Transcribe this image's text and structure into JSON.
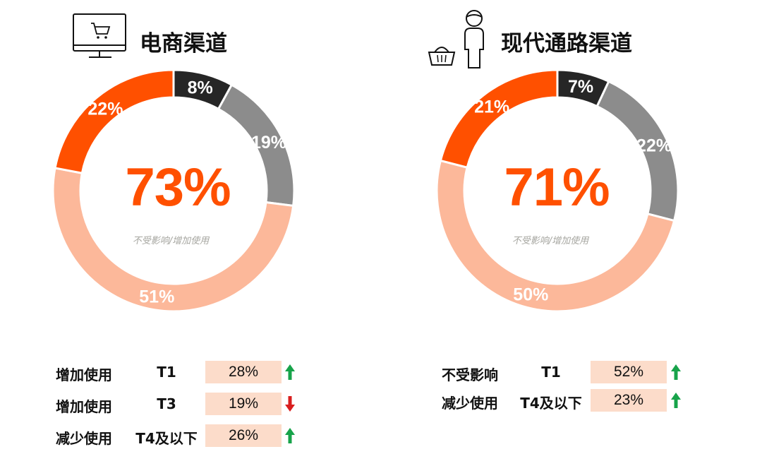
{
  "colors": {
    "orange": "#ff5000",
    "peach": "#fcb89a",
    "gray": "#8c8c8c",
    "dark": "#262626",
    "box": "#fcdcca",
    "up": "#17a34a",
    "down": "#d91e1e"
  },
  "chart_data": [
    {
      "type": "donut",
      "title": "电商渠道",
      "icon": "computer-cart-icon",
      "center_value": "73%",
      "center_label": "不受影响/增加使用",
      "slices": [
        {
          "label": "8%",
          "value": 8,
          "color": "#262626"
        },
        {
          "label": "19%",
          "value": 19,
          "color": "#8c8c8c"
        },
        {
          "label": "51%",
          "value": 51,
          "color": "#fcb89a"
        },
        {
          "label": "22%",
          "value": 22,
          "color": "#ff5000"
        }
      ]
    },
    {
      "type": "donut",
      "title": "现代通路渠道",
      "icon": "shopper-basket-icon",
      "center_value": "71%",
      "center_label": "不受影响/增加使用",
      "slices": [
        {
          "label": "7%",
          "value": 7,
          "color": "#262626"
        },
        {
          "label": "22%",
          "value": 22,
          "color": "#8c8c8c"
        },
        {
          "label": "50%",
          "value": 50,
          "color": "#fcb89a"
        },
        {
          "label": "21%",
          "value": 21,
          "color": "#ff5000"
        }
      ]
    }
  ],
  "tables": [
    {
      "rows": [
        {
          "label": "增加使用",
          "tier": "T1",
          "value": "28%",
          "trend": "up"
        },
        {
          "label": "增加使用",
          "tier": "T3",
          "value": "19%",
          "trend": "down"
        },
        {
          "label": "减少使用",
          "tier": "T4及以下",
          "value": "26%",
          "trend": "up"
        }
      ]
    },
    {
      "rows": [
        {
          "label": "不受影响",
          "tier": "T1",
          "value": "52%",
          "trend": "up"
        },
        {
          "label": "减少使用",
          "tier": "T4及以下",
          "value": "23%",
          "trend": "up"
        }
      ]
    }
  ]
}
